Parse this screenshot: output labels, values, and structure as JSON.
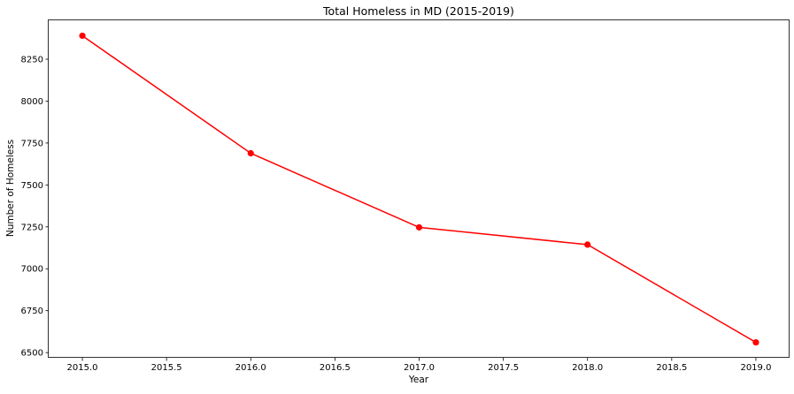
{
  "chart_data": {
    "type": "line",
    "title": "Total Homeless in MD (2015-2019)",
    "xlabel": "Year",
    "ylabel": "Number of Homeless",
    "x": [
      2015.0,
      2016.0,
      2017.0,
      2018.0,
      2019.0
    ],
    "series": [
      {
        "values": [
          8390,
          7689,
          7247,
          7144,
          6561
        ],
        "color": "#ff0000",
        "marker": "circle"
      }
    ],
    "xlim": [
      2014.8,
      2019.2
    ],
    "ylim": [
      6469,
      8482
    ],
    "x_ticks": [
      2015.0,
      2015.5,
      2016.0,
      2016.5,
      2017.0,
      2017.5,
      2018.0,
      2018.5,
      2019.0
    ],
    "x_tick_labels": [
      "2015.0",
      "2015.5",
      "2016.0",
      "2016.5",
      "2017.0",
      "2017.5",
      "2018.0",
      "2018.5",
      "2019.0"
    ],
    "y_ticks": [
      6500,
      6750,
      7000,
      7250,
      7500,
      7750,
      8000,
      8250
    ],
    "y_tick_labels": [
      "6500",
      "6750",
      "7000",
      "7250",
      "7500",
      "7750",
      "8000",
      "8250"
    ],
    "grid": false,
    "legend": "none"
  }
}
